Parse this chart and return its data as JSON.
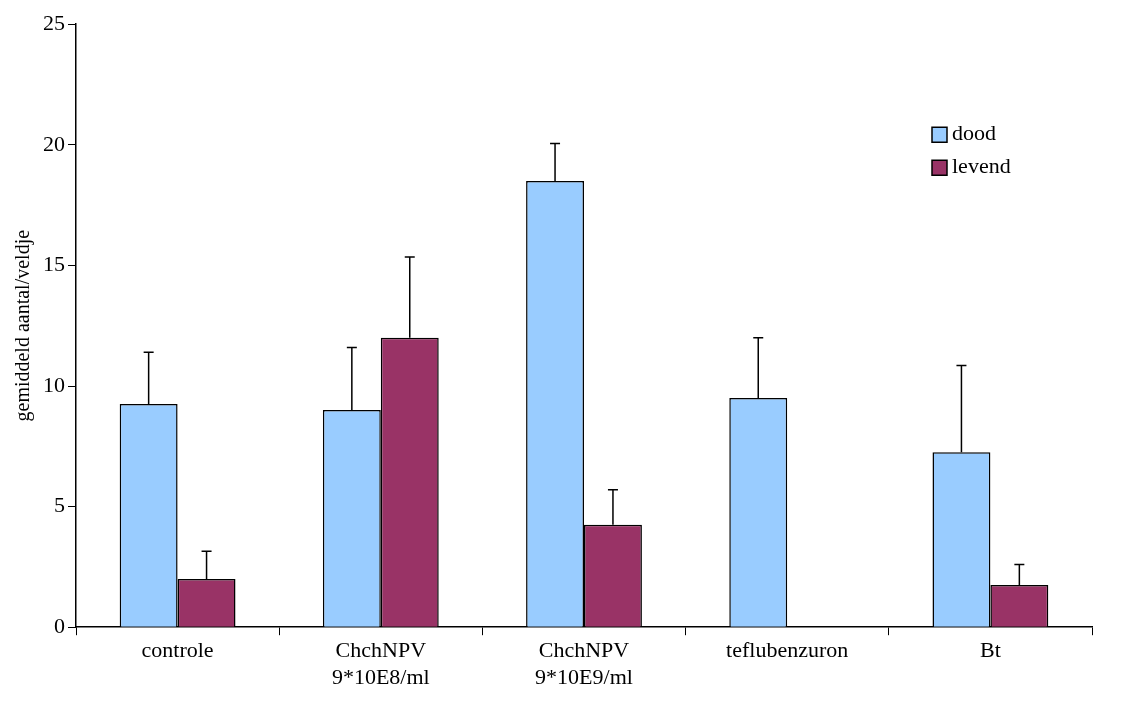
{
  "chart_data": {
    "type": "bar",
    "ylabel": "gemiddeld aantal/veldje",
    "categories": [
      "controle",
      "ChchNPV 9*10E8/ml",
      "ChchNPV 9*10E9/ml",
      "teflubenzuron",
      "Bt"
    ],
    "series": [
      {
        "name": "dood",
        "color": "#99ccff",
        "values": [
          9.25,
          9,
          18.5,
          9.5,
          7.25
        ],
        "errors": [
          2.15,
          2.6,
          1.55,
          2.5,
          3.6
        ]
      },
      {
        "name": "levend",
        "color": "#993366",
        "values": [
          2,
          12,
          4.25,
          0,
          1.75
        ],
        "errors": [
          1.15,
          3.35,
          1.45,
          null,
          0.85
        ]
      }
    ],
    "ylim": [
      0,
      25
    ],
    "yticks": [
      0,
      5,
      10,
      15,
      20,
      25
    ],
    "grid": false,
    "legend": "top right"
  }
}
